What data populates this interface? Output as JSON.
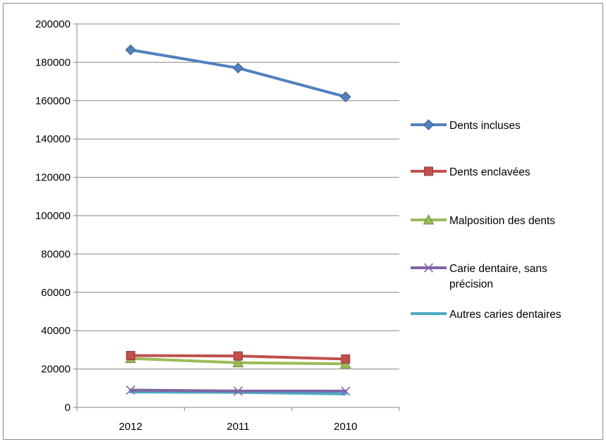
{
  "chart_data": {
    "type": "line",
    "title": "",
    "xlabel": "",
    "ylabel": "",
    "categories": [
      "2012",
      "2011",
      "2010"
    ],
    "ylim": [
      0,
      200000
    ],
    "y_ticks": [
      "0",
      "20000",
      "40000",
      "60000",
      "80000",
      "100000",
      "120000",
      "140000",
      "160000",
      "180000",
      "200000"
    ],
    "grid": "horizontal",
    "legend_position": "right",
    "series": [
      {
        "name": "Dents incluses",
        "values": [
          186500,
          177000,
          162000
        ],
        "color": "#4f81bd",
        "marker": "diamond"
      },
      {
        "name": "Dents enclavées",
        "values": [
          27000,
          26800,
          25200
        ],
        "color": "#c0504d",
        "marker": "square"
      },
      {
        "name": "Malposition des dents",
        "values": [
          25500,
          23300,
          22700
        ],
        "color": "#9bbb59",
        "marker": "triangle"
      },
      {
        "name": "Carie dentaire, sans précision",
        "values": [
          9000,
          8500,
          8500
        ],
        "color": "#8064a2",
        "marker": "x"
      },
      {
        "name": "Autres caries dentaires",
        "values": [
          8000,
          7800,
          7000
        ],
        "color": "#4bacc6",
        "marker": "none"
      }
    ],
    "legend_labels": [
      [
        "Dents incluses"
      ],
      [
        "Dents enclavées"
      ],
      [
        "Malposition des dents"
      ],
      [
        "Carie dentaire, sans",
        "précision"
      ],
      [
        "Autres caries dentaires"
      ]
    ]
  }
}
